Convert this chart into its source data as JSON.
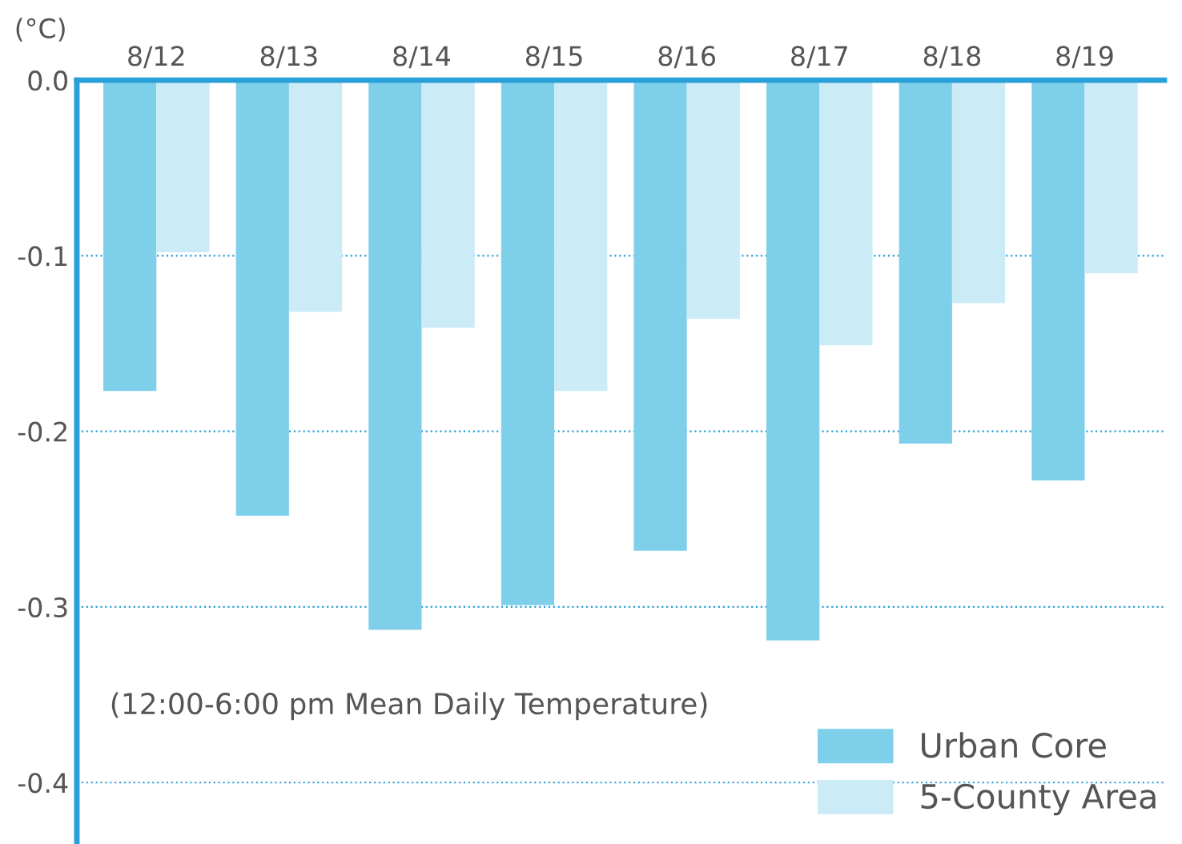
{
  "chart_data": {
    "type": "bar",
    "ylabel": "(°C)",
    "categories": [
      "8/12",
      "8/13",
      "8/14",
      "8/15",
      "8/16",
      "8/17",
      "8/18",
      "8/19"
    ],
    "series": [
      {
        "name": "Urban Core",
        "color": "#7ecfea",
        "values": [
          -0.177,
          -0.248,
          -0.313,
          -0.299,
          -0.268,
          -0.319,
          -0.207,
          -0.228
        ]
      },
      {
        "name": "5-County Area",
        "color": "#cbebf6",
        "values": [
          -0.098,
          -0.132,
          -0.141,
          -0.177,
          -0.136,
          -0.151,
          -0.127,
          -0.11
        ]
      }
    ],
    "ylim": [
      -0.435,
      0.0
    ],
    "yticks": [
      {
        "value": 0,
        "label": "0.0"
      },
      -0.1,
      -0.2,
      -0.3,
      -0.4
    ],
    "grid": "y",
    "legend": "bottom right",
    "annotations": [
      "(12:00-6:00 pm Mean Daily Temperature)"
    ]
  }
}
